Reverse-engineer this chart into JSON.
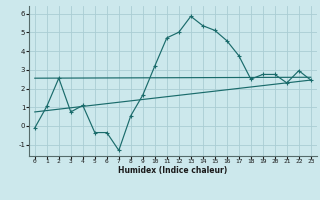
{
  "xlabel": "Humidex (Indice chaleur)",
  "bg_color": "#cce8ec",
  "grid_color": "#aacdd4",
  "line_color": "#1a6b6b",
  "xlim": [
    -0.5,
    23.5
  ],
  "ylim": [
    -1.6,
    6.4
  ],
  "xticks": [
    0,
    1,
    2,
    3,
    4,
    5,
    6,
    7,
    8,
    9,
    10,
    11,
    12,
    13,
    14,
    15,
    16,
    17,
    18,
    19,
    20,
    21,
    22,
    23
  ],
  "yticks": [
    -1,
    0,
    1,
    2,
    3,
    4,
    5,
    6
  ],
  "line1_x": [
    0,
    1,
    2,
    3,
    4,
    5,
    6,
    7,
    8,
    9,
    10,
    11,
    12,
    13,
    14,
    15,
    16,
    17,
    18,
    19,
    20,
    21,
    22,
    23
  ],
  "line1_y": [
    -0.1,
    1.05,
    2.55,
    0.75,
    1.1,
    -0.35,
    -0.35,
    -1.3,
    0.55,
    1.65,
    3.2,
    4.7,
    5.0,
    5.85,
    5.35,
    5.1,
    4.55,
    3.75,
    2.5,
    2.75,
    2.75,
    2.3,
    2.95,
    2.45
  ],
  "line2_x": [
    0,
    23
  ],
  "line2_y": [
    2.55,
    2.6
  ],
  "line3_x": [
    0,
    23
  ],
  "line3_y": [
    0.75,
    2.45
  ]
}
